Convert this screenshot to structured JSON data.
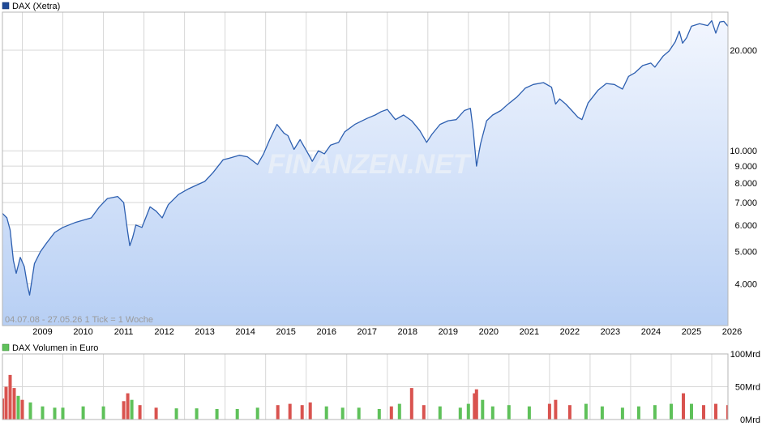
{
  "colors": {
    "line": "#2d5fb0",
    "area_top": "#f2f6fe",
    "area_bottom": "#b7cff4",
    "volume_green": "#5fc15a",
    "volume_red": "#d9534f",
    "legend_line": "#1f4a96",
    "legend_volume": "#5fc15a",
    "grid": "#d7d7d7",
    "frame": "#b4b4b4"
  },
  "price_panel": {
    "legend": "DAX (Xetra)",
    "caption": "04.07.08 - 27.05.26   1 Tick = 1 Woche",
    "watermark": "FINANZEN.NET"
  },
  "volume_panel": {
    "legend": "DAX Volumen in Euro"
  },
  "chart_data": [
    {
      "type": "line",
      "title": "DAX (Xetra)",
      "scale": "log",
      "xlim": [
        2008.51,
        2026.4
      ],
      "ylim": [
        3000,
        26000
      ],
      "x_tick_labels": [
        "2009",
        "2010",
        "2011",
        "2012",
        "2013",
        "2014",
        "2015",
        "2016",
        "2017",
        "2018",
        "2019",
        "2020",
        "2021",
        "2022",
        "2023",
        "2024",
        "2025",
        "2026"
      ],
      "y_ticks": [
        4000,
        5000,
        6000,
        7000,
        8000,
        9000,
        10000,
        20000
      ],
      "y_tick_labels": [
        "4.000",
        "5.000",
        "6.000",
        "7.000",
        "8.000",
        "9.000",
        "10.000",
        "20.000"
      ],
      "grid": true,
      "legend_position": "top-left",
      "series": [
        {
          "name": "DAX (Xetra)",
          "x": [
            2008.51,
            2008.62,
            2008.7,
            2008.78,
            2008.85,
            2008.95,
            2009.05,
            2009.12,
            2009.18,
            2009.3,
            2009.45,
            2009.6,
            2009.8,
            2010.0,
            2010.3,
            2010.5,
            2010.7,
            2010.9,
            2011.1,
            2011.35,
            2011.5,
            2011.6,
            2011.65,
            2011.72,
            2011.8,
            2011.95,
            2012.15,
            2012.3,
            2012.45,
            2012.6,
            2012.85,
            2013.1,
            2013.3,
            2013.5,
            2013.7,
            2013.95,
            2014.1,
            2014.35,
            2014.55,
            2014.8,
            2014.95,
            2015.1,
            2015.28,
            2015.45,
            2015.55,
            2015.7,
            2015.85,
            2016.05,
            2016.15,
            2016.3,
            2016.45,
            2016.6,
            2016.8,
            2016.95,
            2017.2,
            2017.5,
            2017.7,
            2017.85,
            2018.0,
            2018.2,
            2018.4,
            2018.6,
            2018.8,
            2018.97,
            2019.1,
            2019.3,
            2019.5,
            2019.7,
            2019.9,
            2020.05,
            2020.12,
            2020.2,
            2020.3,
            2020.45,
            2020.6,
            2020.8,
            2020.95,
            2021.2,
            2021.4,
            2021.6,
            2021.85,
            2022.05,
            2022.15,
            2022.25,
            2022.4,
            2022.55,
            2022.7,
            2022.8,
            2022.95,
            2023.2,
            2023.4,
            2023.6,
            2023.8,
            2023.95,
            2024.1,
            2024.3,
            2024.5,
            2024.6,
            2024.8,
            2024.95,
            2025.1,
            2025.2,
            2025.28,
            2025.38,
            2025.5,
            2025.7,
            2025.9,
            2026.0,
            2026.1,
            2026.2,
            2026.3,
            2026.4
          ],
          "values": [
            6500,
            6300,
            5800,
            4700,
            4300,
            4800,
            4500,
            4000,
            3700,
            4600,
            5000,
            5300,
            5700,
            5900,
            6100,
            6200,
            6300,
            6800,
            7200,
            7300,
            7000,
            5700,
            5200,
            5500,
            6000,
            5900,
            6800,
            6600,
            6300,
            6900,
            7400,
            7700,
            7900,
            8100,
            8600,
            9400,
            9500,
            9700,
            9600,
            9100,
            9800,
            10800,
            12000,
            11300,
            11100,
            10100,
            10800,
            9800,
            9300,
            10000,
            9800,
            10400,
            10600,
            11400,
            12000,
            12500,
            12800,
            13100,
            13300,
            12400,
            12800,
            12300,
            11500,
            10600,
            11200,
            12000,
            12300,
            12400,
            13200,
            13400,
            11500,
            9000,
            10500,
            12300,
            12800,
            13200,
            13700,
            14500,
            15400,
            15800,
            16000,
            15500,
            13800,
            14300,
            13800,
            13200,
            12600,
            12400,
            13900,
            15200,
            15900,
            15800,
            15300,
            16700,
            17100,
            18000,
            18300,
            17800,
            19200,
            19900,
            21200,
            22800,
            21000,
            21800,
            23600,
            24000,
            23700,
            24500,
            22500,
            24300,
            24400,
            23600
          ]
        }
      ]
    },
    {
      "type": "bar",
      "title": "DAX Volumen in Euro",
      "ylim": [
        0,
        100
      ],
      "y_ticks": [
        0,
        50,
        100
      ],
      "y_tick_labels": [
        "0Mrd",
        "50Mrd",
        "100Mrd"
      ],
      "unit": "Mrd",
      "legend_position": "top-left",
      "series": [
        {
          "name": "DAX Volumen in Euro",
          "x": [
            2008.51,
            2008.6,
            2008.7,
            2008.8,
            2008.9,
            2009.0,
            2009.2,
            2009.5,
            2009.8,
            2010.0,
            2010.5,
            2011.0,
            2011.5,
            2011.6,
            2011.7,
            2011.9,
            2012.3,
            2012.8,
            2013.3,
            2013.8,
            2014.3,
            2014.8,
            2015.3,
            2015.6,
            2015.9,
            2016.1,
            2016.5,
            2016.9,
            2017.3,
            2017.8,
            2018.1,
            2018.3,
            2018.6,
            2018.9,
            2019.3,
            2019.8,
            2020.0,
            2020.15,
            2020.2,
            2020.35,
            2020.6,
            2021.0,
            2021.5,
            2022.0,
            2022.15,
            2022.5,
            2022.9,
            2023.3,
            2023.8,
            2024.2,
            2024.6,
            2025.0,
            2025.3,
            2025.5,
            2025.8,
            2026.1,
            2026.4
          ],
          "values": [
            32,
            50,
            68,
            48,
            36,
            30,
            26,
            20,
            18,
            18,
            20,
            20,
            28,
            40,
            30,
            22,
            18,
            17,
            17,
            16,
            16,
            18,
            22,
            24,
            22,
            26,
            20,
            18,
            18,
            16,
            20,
            24,
            48,
            22,
            20,
            18,
            24,
            40,
            46,
            30,
            20,
            22,
            20,
            24,
            30,
            22,
            24,
            20,
            18,
            20,
            22,
            24,
            40,
            24,
            22,
            24,
            22
          ]
        }
      ]
    }
  ]
}
